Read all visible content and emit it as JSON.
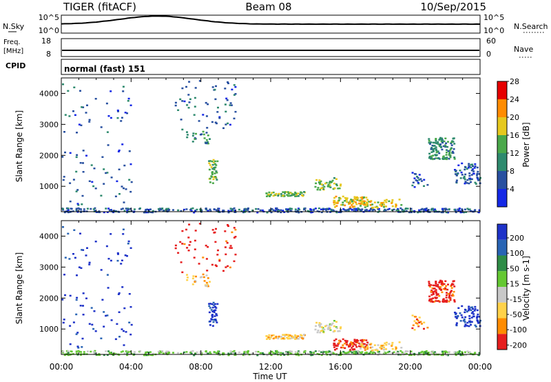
{
  "header": {
    "radar": "TIGER (fitACF)",
    "beam": "Beam 08",
    "date": "10/Sep/2015"
  },
  "top_panels": {
    "nsky_label": "N.Sky",
    "nsearch_label": "N.Search",
    "nsky_ticks": [
      "10^5",
      "10^0"
    ],
    "nsearch_ticks": [
      "10^5",
      "10^0"
    ],
    "freq_label_1": "Freq.",
    "freq_label_2": "[MHz]",
    "freq_ticks": [
      "18",
      "8"
    ],
    "nave_label": "Nave",
    "nave_ticks": [
      "60",
      "0"
    ],
    "cpid_label": "CPID",
    "cpid_text": "normal (fast) 151"
  },
  "chart_data": [
    {
      "type": "heatmap",
      "name": "Power",
      "ylabel": "Slant Range [km]",
      "ylim": [
        180,
        4500
      ],
      "xlim": [
        0,
        24
      ],
      "yticks": [
        "1000",
        "2000",
        "3000",
        "4000"
      ],
      "colorbar_label": "Power [dB]",
      "colorbar_ticks": [
        "4",
        "8",
        "12",
        "16",
        "20",
        "24",
        "28"
      ],
      "colorbar_colors": [
        "#1428e6",
        "#2850a0",
        "#2e8a6e",
        "#4aa84a",
        "#e6c81e",
        "#ff8c00",
        "#e60000"
      ]
    },
    {
      "type": "heatmap",
      "name": "Velocity",
      "ylabel": "Slant Range [km]",
      "ylim": [
        180,
        4500
      ],
      "xlim": [
        0,
        24
      ],
      "yticks": [
        "1000",
        "2000",
        "3000",
        "4000"
      ],
      "xticks": [
        "00:00",
        "04:00",
        "08:00",
        "12:00",
        "16:00",
        "20:00",
        "00:00"
      ],
      "xlabel": "Time UT",
      "colorbar_label": "Velocity [m s-1]",
      "colorbar_ticks": [
        "200",
        "100",
        "50",
        "15",
        "-15",
        "-50",
        "-100",
        "-200"
      ],
      "colorbar_colors": [
        "#1e32c8",
        "#2864b4",
        "#2e8c46",
        "#64c832",
        "#c8c8c8",
        "#ffd24a",
        "#ff8c00",
        "#e61e1e"
      ]
    }
  ]
}
